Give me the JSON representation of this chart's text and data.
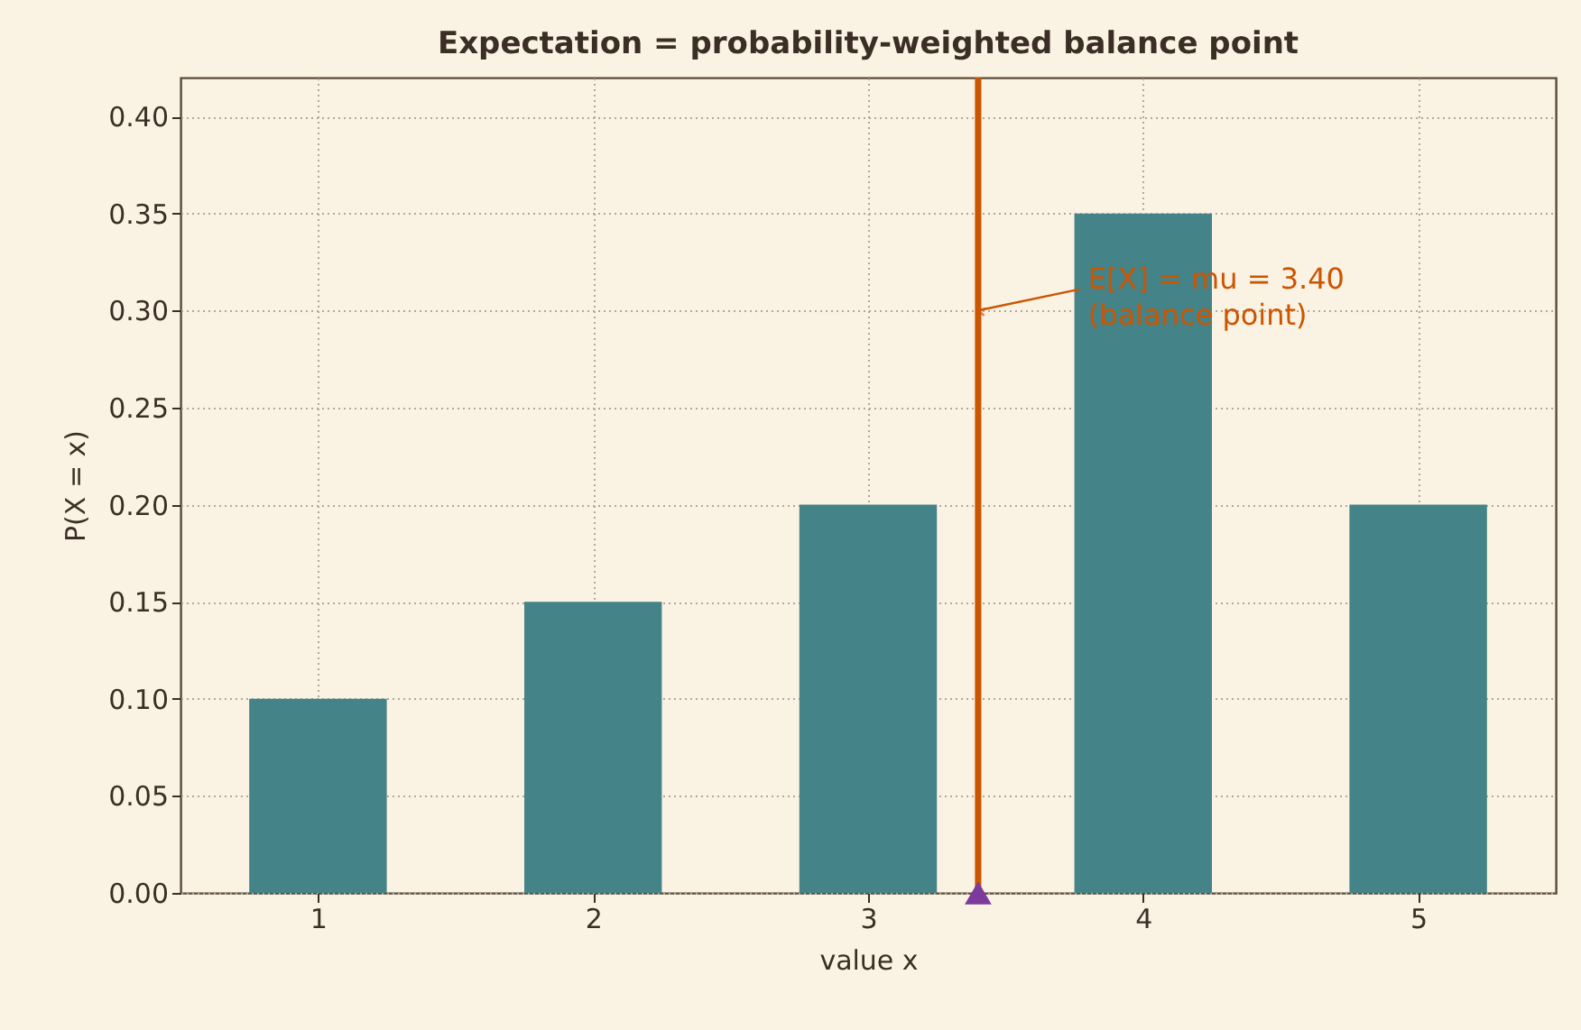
{
  "chart_data": {
    "type": "bar",
    "title": "Expectation = probability-weighted balance point",
    "xlabel": "value x",
    "ylabel": "P(X = x)",
    "x": [
      1,
      2,
      3,
      4,
      5
    ],
    "series": [
      {
        "color": "#448388",
        "values": [
          0.1,
          0.15,
          0.2,
          0.35,
          0.2
        ]
      },
      {
        "type": "scatter",
        "x": [
          3.4
        ],
        "color": "#7b3a9c",
        "values": [
          0
        ]
      }
    ],
    "marker": "triangle",
    "xlim": [
      0.5,
      5.5
    ],
    "xticks": [
      1,
      2,
      3,
      4,
      5
    ],
    "ylim": [
      0,
      0.42
    ],
    "yticks": [
      {
        "value": 0,
        "label": "0.00"
      },
      0.05,
      {
        "value": 0.1,
        "label": "0.10"
      },
      0.15,
      {
        "value": 0.2,
        "label": "0.20"
      },
      0.25,
      {
        "value": 0.3,
        "label": "0.30"
      },
      0.35,
      {
        "value": 0.4,
        "label": "0.40"
      }
    ],
    "grid": true,
    "ref_lines": [
      {
        "axis": "x",
        "value": 3.4,
        "color": "#cc5500"
      }
    ],
    "annotations": [
      {
        "text": "E[X] = mu = 3.40\n(balance point)",
        "x": 3.4,
        "y": 0.3
      }
    ]
  }
}
